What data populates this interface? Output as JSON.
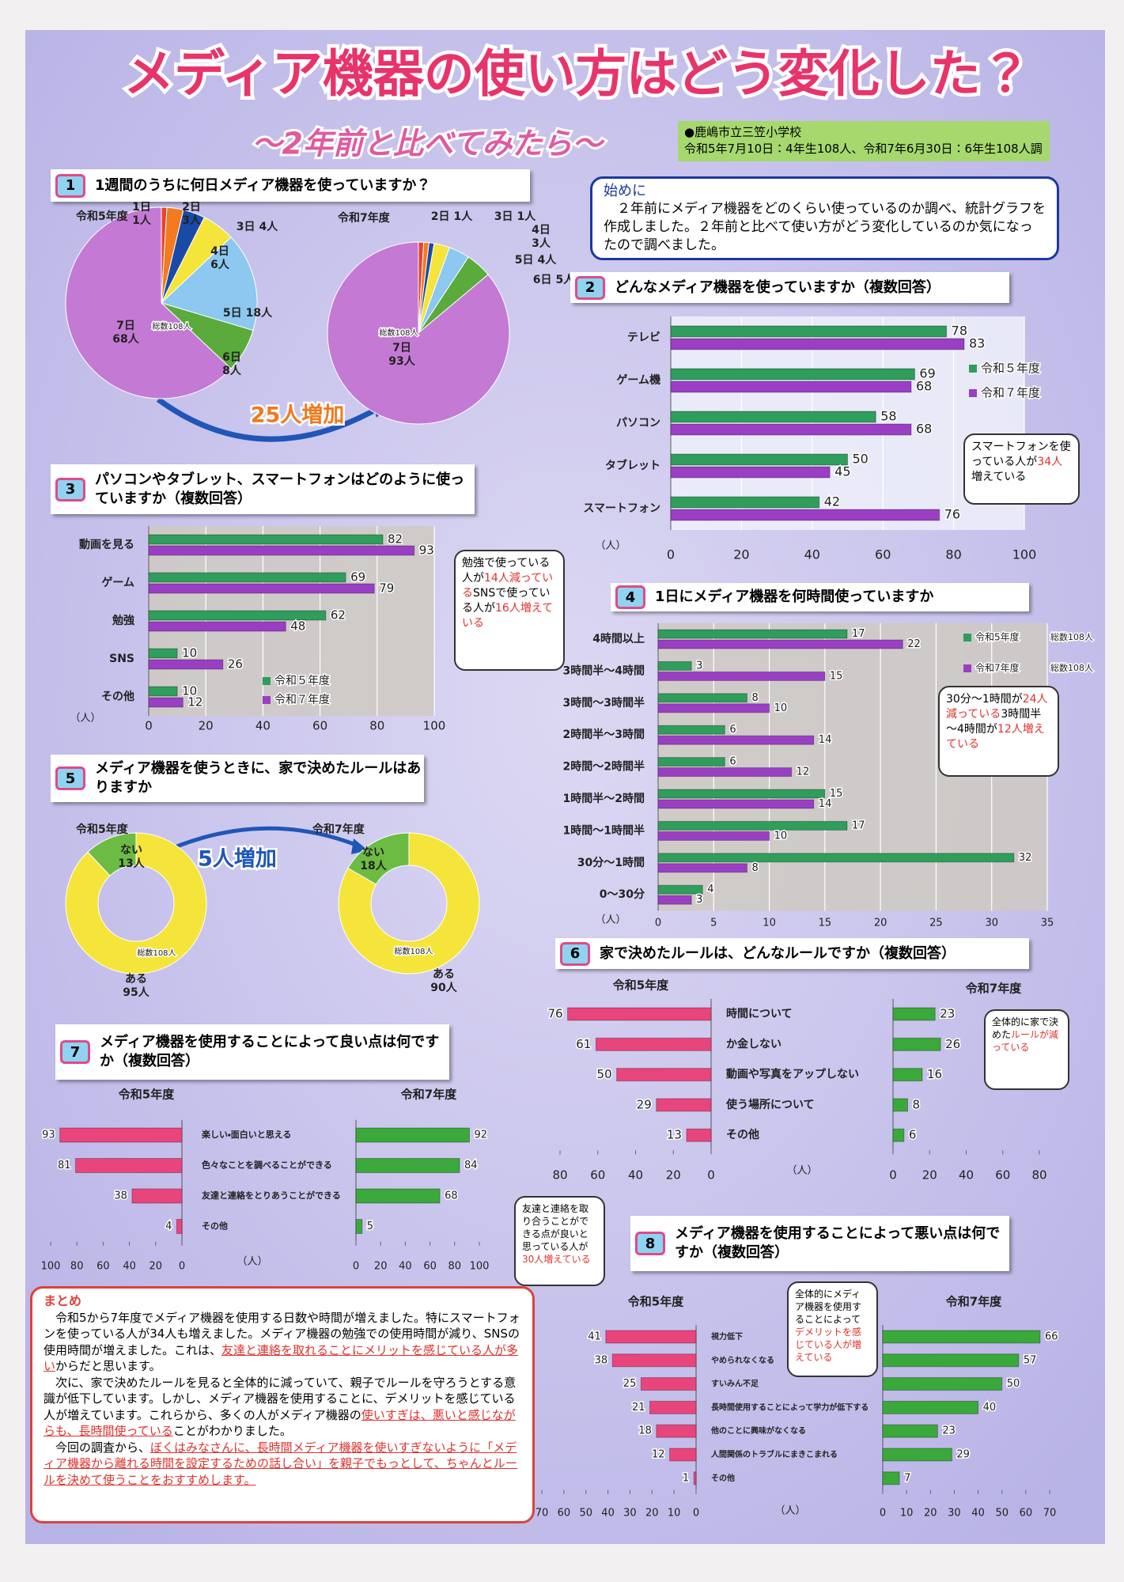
{
  "header": {
    "title": "メディア機器の使い方はどう変化した？",
    "subtitle": "～2年前と比べてみたら～",
    "school": "●鹿嶋市立三笠小学校",
    "survey": "令和5年7月10日：4年生108人、令和7年6月30日：6年生108人調"
  },
  "intro": {
    "heading": "始めに",
    "text": "２年前にメディア機器をどのくらい使っているのか調べ、統計グラフを作成しました。２年前と比べて使い方がどう変化しているのか気になったので調べました。"
  },
  "sections": [
    {
      "number": "1",
      "title": "1週間のうちに何日メディア機器を使っていますか？"
    },
    {
      "number": "2",
      "title": "どんなメディア機器を使っていますか（複数回答）"
    },
    {
      "number": "3",
      "title": "パソコンやタブレット、スマートフォンはどのように使っていますか（複数回答）"
    },
    {
      "number": "4",
      "title": "1日にメディア機器を何時間使っていますか"
    },
    {
      "number": "5",
      "title": "メディア機器を使うときに、家で決めたルールはありますか"
    },
    {
      "number": "6",
      "title": "家で決めたルールは、どんなルールですか（複数回答）"
    },
    {
      "number": "7",
      "title": "メディア機器を使用することによって良い点は何ですか（複数回答）"
    },
    {
      "number": "8",
      "title": "メディア機器を使用することによって悪い点は何ですか（複数回答）"
    }
  ],
  "chart_data": [
    {
      "type": "pie",
      "title": "令和5年度",
      "categories": [
        "1日",
        "2日",
        "3日",
        "4日",
        "5日",
        "6日",
        "7日"
      ],
      "values": [
        1,
        3,
        4,
        6,
        18,
        8,
        68
      ],
      "value_labels": [
        "1人",
        "3人",
        "4人",
        "6人",
        "18人",
        "8人",
        "68人"
      ],
      "colors": [
        "#e8432c",
        "#f47a20",
        "#1a4aa8",
        "#f5e43a",
        "#8cc8f0",
        "#5aaa3c",
        "#c47ad4"
      ],
      "total_label": "総数108人",
      "annotation": "25人増加"
    },
    {
      "type": "pie",
      "title": "令和7年度",
      "categories": [
        null,
        "2日",
        "3日",
        "4日",
        "5日",
        "6日",
        "7日"
      ],
      "values": [
        1,
        1,
        1,
        3,
        4,
        5,
        93
      ],
      "value_labels": [
        null,
        "1人",
        "1人",
        "3人",
        "4人",
        "5人",
        "93人"
      ],
      "colors": [
        "#e8432c",
        "#f47a20",
        "#1a4aa8",
        "#f5e43a",
        "#8cc8f0",
        "#5aaa3c",
        "#c47ad4"
      ],
      "total_label": "総数108人"
    },
    {
      "type": "hbar",
      "categories": [
        "テレビ",
        "ゲーム機",
        "パソコン",
        "タブレット",
        "スマートフォン"
      ],
      "series": [
        {
          "name": "令和５年度",
          "color": "#2f9d5b",
          "values": [
            78,
            69,
            58,
            50,
            42
          ]
        },
        {
          "name": "令和７年度",
          "color": "#9a3fc4",
          "values": [
            83,
            68,
            68,
            45,
            76
          ]
        }
      ],
      "xlim": [
        0,
        100
      ],
      "xticks": [
        0,
        20,
        40,
        60,
        80,
        100
      ],
      "unit": "（人）",
      "grid": true
    },
    {
      "type": "hbar",
      "categories": [
        "動画を見る",
        "ゲーム",
        "勉強",
        "SNS",
        "その他"
      ],
      "series": [
        {
          "name": "令和５年度",
          "color": "#2f9d5b",
          "values": [
            82,
            69,
            62,
            10,
            10
          ]
        },
        {
          "name": "令和７年度",
          "color": "#9a3fc4",
          "values": [
            93,
            79,
            48,
            26,
            12
          ]
        }
      ],
      "xlim": [
        0,
        100
      ],
      "xticks": [
        0,
        20,
        40,
        60,
        80,
        100
      ],
      "unit": "（人）",
      "grid": true
    },
    {
      "type": "hbar",
      "categories": [
        "4時間以上",
        "3時間半～4時間",
        "3時間～3時間半",
        "2時間半～3時間",
        "2時間～2時間半",
        "1時間半～2時間",
        "1時間～1時間半",
        "30分～1時間",
        "0～30分"
      ],
      "series": [
        {
          "name": "令和5年度",
          "color": "#2f9d5b",
          "values": [
            17,
            3,
            8,
            6,
            6,
            15,
            17,
            32,
            4
          ]
        },
        {
          "name": "令和7年度",
          "color": "#9a3fc4",
          "values": [
            22,
            15,
            10,
            14,
            12,
            14,
            10,
            8,
            3
          ]
        }
      ],
      "total_label": "総数108人",
      "xlim": [
        0,
        35
      ],
      "xticks": [
        0,
        5,
        10,
        15,
        20,
        25,
        30,
        35
      ],
      "unit": "（人）",
      "grid": true
    },
    {
      "type": "donut",
      "title": "令和5年度",
      "categories": [
        "ない",
        "ある"
      ],
      "values": [
        13,
        95
      ],
      "value_labels": [
        "13人",
        "95人"
      ],
      "colors": [
        "#6cbc44",
        "#f5e53a"
      ],
      "total_label": "総数108人",
      "annotation": "5人増加"
    },
    {
      "type": "donut",
      "title": "令和7年度",
      "categories": [
        "ない",
        "ある"
      ],
      "values": [
        18,
        90
      ],
      "value_labels": [
        "18人",
        "90人"
      ],
      "colors": [
        "#6cbc44",
        "#f5e53a"
      ],
      "total_label": "総数108人"
    },
    {
      "type": "hbar",
      "title": "令和5年度",
      "categories": [
        "時間について",
        "か金しない",
        "動画や写真をアップしない",
        "使う場所について",
        "その他"
      ],
      "series": [
        {
          "color": "#e8457c",
          "values": [
            76,
            61,
            50,
            29,
            13
          ]
        }
      ],
      "xlim": [
        80,
        0
      ],
      "xticks": [
        80,
        60,
        40,
        20,
        0
      ],
      "unit": "（人）"
    },
    {
      "type": "hbar",
      "title": "令和7年度",
      "series": [
        {
          "color": "#3aa83a",
          "values": [
            23,
            26,
            16,
            8,
            6
          ]
        }
      ],
      "xlim": [
        0,
        80
      ],
      "xticks": [
        0,
        20,
        40,
        60,
        80
      ]
    },
    {
      "type": "hbar",
      "title": "令和5年度",
      "categories": [
        "楽しい・面白いと思える",
        "色々なことを調べることができる",
        "友達と連絡をとりあうことができる",
        "その他"
      ],
      "series": [
        {
          "color": "#e8457c",
          "values": [
            93,
            81,
            38,
            4
          ]
        }
      ],
      "xlim": [
        100,
        0
      ],
      "xticks": [
        100,
        80,
        60,
        40,
        20,
        0
      ],
      "unit": "（人）"
    },
    {
      "type": "hbar",
      "title": "令和7年度",
      "series": [
        {
          "color": "#3aa83a",
          "values": [
            92,
            84,
            68,
            5
          ]
        }
      ],
      "xlim": [
        0,
        100
      ],
      "xticks": [
        0,
        20,
        40,
        60,
        80,
        100
      ]
    },
    {
      "type": "hbar",
      "title": "令和5年度",
      "categories": [
        "視力低下",
        "やめられなくなる",
        "すいみん不足",
        "長時間使用することによって学力が低下する",
        "他のことに興味がなくなる",
        "人間関係のトラブルにまきこまれる",
        "その他"
      ],
      "series": [
        {
          "color": "#e8457c",
          "values": [
            41,
            38,
            25,
            21,
            18,
            12,
            1
          ]
        }
      ],
      "xlim": [
        70,
        0
      ],
      "xticks": [
        70,
        60,
        50,
        40,
        30,
        20,
        10,
        0
      ],
      "unit": "（人）"
    },
    {
      "type": "hbar",
      "title": "令和7年度",
      "series": [
        {
          "color": "#3aa83a",
          "values": [
            66,
            57,
            50,
            40,
            23,
            29,
            7
          ]
        }
      ],
      "xlim": [
        0,
        70
      ],
      "xticks": [
        0,
        10,
        20,
        30,
        40,
        50,
        60,
        70
      ]
    }
  ],
  "comments": [
    {
      "segments": [
        {
          "text": "スマートフォンを使っている人が"
        },
        {
          "text": "34人",
          "red": true
        },
        {
          "text": "増えている"
        }
      ]
    },
    {
      "segments": [
        {
          "text": "勉強で使っている人が"
        },
        {
          "text": "14人減っている",
          "red": true
        },
        {
          "text": "SNSで使っている人が"
        },
        {
          "text": "16人増えている",
          "red": true
        }
      ]
    },
    {
      "segments": [
        {
          "text": "30分～1時間が"
        },
        {
          "text": "24人減っている",
          "red": true
        },
        {
          "text": "3時間半～4時間が"
        },
        {
          "text": "12人増えている",
          "red": true
        }
      ]
    },
    {
      "segments": [
        {
          "text": "全体的に家で決めた"
        },
        {
          "text": "ルールが減っている",
          "red": true
        }
      ]
    },
    {
      "segments": [
        {
          "text": "友達と連絡を取り合うことができる点が良いと思っている人が"
        },
        {
          "text": "30人増えている",
          "red": true
        }
      ]
    },
    {
      "segments": [
        {
          "text": "全体的にメディア機器を使用することによって"
        },
        {
          "text": "デメリットを感じている人が増えている",
          "red": true
        }
      ]
    }
  ],
  "summary": {
    "heading": "まとめ",
    "paragraphs": [
      [
        {
          "text": "令和5から7年度でメディア機器を使用する日数や時間が増えました。特にスマートフォンを使っている人が34人も増えました。メディア機器の勉強での使用時間が減り、SNSの使用時間が増えました。これは、"
        },
        {
          "text": "友達と連絡を取れることにメリットを感じている人が多い",
          "red": true
        },
        {
          "text": "からだと思います。"
        }
      ],
      [
        {
          "text": "次に、家で決めたルールを見ると全体的に減っていて、親子でルールを守ろうとする意識が低下しています。しかし、メディア機器を使用することに、デメリットを感じている人が増えています。これらから、多くの人がメディア機器の"
        },
        {
          "text": "使いすぎは、悪いと感じながらも、長時間使っている",
          "red": true
        },
        {
          "text": "ことがわかりました。"
        }
      ],
      [
        {
          "text": "今回の調査から、"
        },
        {
          "text": "ぼくはみなさんに、長時間メディア機器を使いすぎないように「メディア機器から離れる時間を設定するための話し合い」を親子でもっとして、ちゃんとルールを決めて使うことをおすすめします。",
          "red": true
        }
      ]
    ]
  }
}
